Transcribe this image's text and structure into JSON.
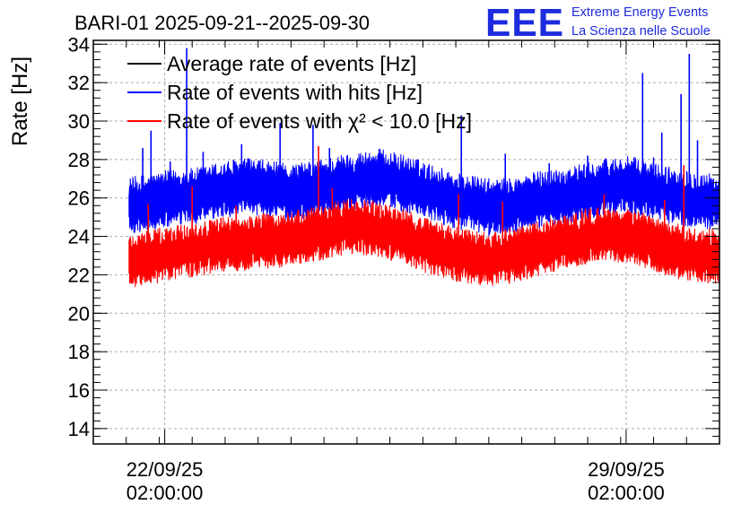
{
  "chart_data": {
    "type": "line",
    "title": "BARI-01 2025-09-21--2025-09-30",
    "ylabel": "Rate [Hz]",
    "xlabel": "",
    "ylim": [
      13.2,
      34.2
    ],
    "yticks": [
      14,
      16,
      18,
      20,
      22,
      24,
      26,
      28,
      30,
      32,
      34
    ],
    "xlim": [
      "2025-09-21 00:00",
      "2025-09-30 12:00"
    ],
    "xticks": [
      {
        "value": "2025-09-22 02:00",
        "date": "22/09/25",
        "time": "02:00:00"
      },
      {
        "value": "2025-09-29 02:00",
        "date": "29/09/25",
        "time": "02:00:00"
      }
    ],
    "grid": true,
    "legend_position": "top-left",
    "series": [
      {
        "name": "Average rate of events [Hz]",
        "color": "#000000",
        "x_start": "2025-09-21 13:00",
        "x_end": "2025-09-30 12:00",
        "values": []
      },
      {
        "name": "Rate of events with hits [Hz]",
        "color": "#0000ff",
        "x_start": "2025-09-21 13:00",
        "x_end": "2025-09-30 12:00",
        "mean_curve": [
          25.5,
          25.7,
          25.9,
          26.0,
          26.3,
          26.5,
          26.4,
          26.2,
          26.3,
          26.6,
          26.8,
          27.0,
          26.7,
          26.3,
          25.9,
          25.6,
          25.4,
          25.5,
          25.8,
          26.0,
          26.2,
          26.5,
          26.6,
          26.3,
          26.0,
          25.8,
          25.7
        ],
        "band": [
          1.6,
          1.4
        ],
        "spikes": [
          {
            "x": "2025-09-21 18:00",
            "y": 28.6
          },
          {
            "x": "2025-09-21 21:00",
            "y": 29.5
          },
          {
            "x": "2025-09-22 04:00",
            "y": 27.9
          },
          {
            "x": "2025-09-22 10:00",
            "y": 33.8
          },
          {
            "x": "2025-09-22 16:00",
            "y": 28.4
          },
          {
            "x": "2025-09-23 06:00",
            "y": 28.8
          },
          {
            "x": "2025-09-23 20:00",
            "y": 29.9
          },
          {
            "x": "2025-09-24 08:00",
            "y": 29.8
          },
          {
            "x": "2025-09-24 14:00",
            "y": 28.6
          },
          {
            "x": "2025-09-25 03:00",
            "y": 27.9
          },
          {
            "x": "2025-09-25 22:00",
            "y": 28.0
          },
          {
            "x": "2025-09-26 14:00",
            "y": 30.3
          },
          {
            "x": "2025-09-27 06:00",
            "y": 28.3
          },
          {
            "x": "2025-09-27 22:00",
            "y": 27.8
          },
          {
            "x": "2025-09-28 12:00",
            "y": 28.2
          },
          {
            "x": "2025-09-29 08:00",
            "y": 32.5
          },
          {
            "x": "2025-09-29 12:00",
            "y": 28.1
          },
          {
            "x": "2025-09-29 15:00",
            "y": 29.4
          },
          {
            "x": "2025-09-29 22:00",
            "y": 31.4
          },
          {
            "x": "2025-09-30 01:00",
            "y": 33.5
          },
          {
            "x": "2025-09-30 04:00",
            "y": 29.0
          }
        ]
      },
      {
        "name": "Rate of events with χ² < 10.0 [Hz]",
        "color": "#ff0000",
        "x_start": "2025-09-21 13:00",
        "x_end": "2025-09-30 12:00",
        "mean_curve": [
          22.7,
          22.9,
          23.1,
          23.3,
          23.5,
          23.6,
          23.7,
          23.8,
          24.0,
          24.3,
          24.5,
          24.3,
          24.0,
          23.5,
          23.1,
          22.9,
          22.8,
          23.0,
          23.3,
          23.6,
          23.9,
          24.1,
          24.0,
          23.6,
          23.2,
          23.0,
          22.9
        ],
        "band": [
          1.5,
          1.4
        ],
        "spikes": [
          {
            "x": "2025-09-21 20:00",
            "y": 25.7
          },
          {
            "x": "2025-09-22 12:00",
            "y": 26.6
          },
          {
            "x": "2025-09-23 04:00",
            "y": 25.6
          },
          {
            "x": "2025-09-24 10:00",
            "y": 28.7
          },
          {
            "x": "2025-09-24 15:00",
            "y": 26.5
          },
          {
            "x": "2025-09-26 13:00",
            "y": 26.2
          },
          {
            "x": "2025-09-27 05:00",
            "y": 25.8
          },
          {
            "x": "2025-09-28 18:00",
            "y": 26.2
          },
          {
            "x": "2025-09-29 16:00",
            "y": 25.9
          },
          {
            "x": "2025-09-29 23:00",
            "y": 27.7
          }
        ]
      }
    ]
  },
  "logo": {
    "mark": "EEE",
    "line1": "Extreme Energy Events",
    "line2": "La Scienza nelle Scuole",
    "color": "#1d2bde"
  }
}
